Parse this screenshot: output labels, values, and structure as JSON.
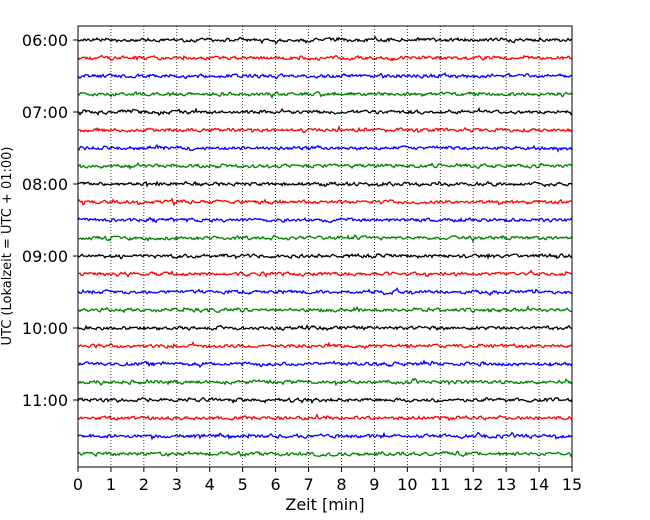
{
  "chart_data": {
    "type": "line",
    "title": "",
    "xlabel": "Zeit  [min]",
    "ylabel": "UTC (Lokalzeit = UTC + 01:00)",
    "xlim": [
      0,
      15
    ],
    "xticks": [
      "0",
      "1",
      "2",
      "3",
      "4",
      "5",
      "6",
      "7",
      "8",
      "9",
      "10",
      "11",
      "12",
      "13",
      "14",
      "15"
    ],
    "yticks": [
      {
        "time": "06:00",
        "trace_index": 0
      },
      {
        "time": "07:00",
        "trace_index": 4
      },
      {
        "time": "08:00",
        "trace_index": 8
      },
      {
        "time": "09:00",
        "trace_index": 12
      },
      {
        "time": "10:00",
        "trace_index": 16
      },
      {
        "time": "11:00",
        "trace_index": 20
      }
    ],
    "trace_interval_minutes": 15,
    "trace_count": 24,
    "trace_colors": [
      "#000000",
      "#ff0000",
      "#0000ff",
      "#008000"
    ],
    "x_grid": "dotted",
    "legend": "none"
  }
}
